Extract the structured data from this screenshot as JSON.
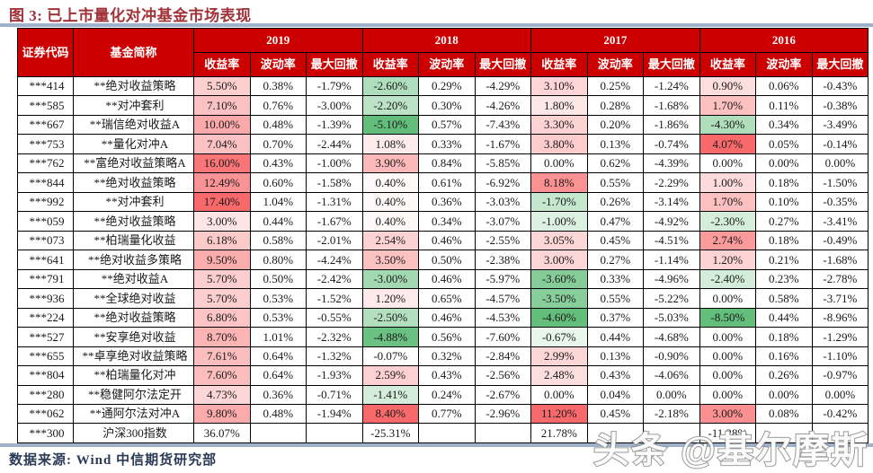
{
  "title": "图 3: 已上市量化对冲基金市场表现",
  "source_note": "数据来源: Wind 中信期货研究部",
  "watermark": "头条 @基尔摩斯",
  "colors": {
    "header_bg": "#CC0000",
    "title_text": "#A03238",
    "divider": "#9FB2CC",
    "scale_positive_max": "#F8696B",
    "scale_negative_min": "#63BE7B",
    "cell_neutral": "#FFFFFF"
  },
  "table": {
    "code_header": "证券代码",
    "name_header": "基金简称",
    "years": [
      "2019",
      "2018",
      "2017",
      "2016"
    ],
    "metric_headers": [
      "收益率",
      "波动率",
      "最大回撤"
    ],
    "rows": [
      {
        "code": "***414",
        "name": "**绝对收益策略",
        "cells": [
          [
            "5.50%",
            "0.38%",
            "-1.79%"
          ],
          [
            "-2.60%",
            "0.29%",
            "-4.29%"
          ],
          [
            "3.10%",
            "0.25%",
            "-1.24%"
          ],
          [
            "0.90%",
            "0.06%",
            "-0.43%"
          ]
        ]
      },
      {
        "code": "***585",
        "name": "**对冲套利",
        "cells": [
          [
            "7.10%",
            "0.76%",
            "-3.00%"
          ],
          [
            "-2.20%",
            "0.30%",
            "-4.26%"
          ],
          [
            "1.80%",
            "0.28%",
            "-1.68%"
          ],
          [
            "1.70%",
            "0.11%",
            "-0.38%"
          ]
        ]
      },
      {
        "code": "***667",
        "name": "**瑞信绝对收益A",
        "cells": [
          [
            "10.00%",
            "0.48%",
            "-1.39%"
          ],
          [
            "-5.10%",
            "0.57%",
            "-7.43%"
          ],
          [
            "3.30%",
            "0.20%",
            "-1.86%"
          ],
          [
            "-4.30%",
            "0.34%",
            "-3.49%"
          ]
        ]
      },
      {
        "code": "***753",
        "name": "**量化对冲A",
        "cells": [
          [
            "7.04%",
            "0.70%",
            "-2.44%"
          ],
          [
            "1.08%",
            "0.33%",
            "-1.67%"
          ],
          [
            "3.80%",
            "0.13%",
            "-0.74%"
          ],
          [
            "4.07%",
            "0.05%",
            "-0.14%"
          ]
        ]
      },
      {
        "code": "***762",
        "name": "**富绝对收益策略A",
        "cells": [
          [
            "16.00%",
            "0.43%",
            "-1.00%"
          ],
          [
            "3.90%",
            "0.84%",
            "-5.85%"
          ],
          [
            "0.00%",
            "0.62%",
            "-4.39%"
          ],
          [
            "0.00%",
            "0.00%",
            "0.00%"
          ]
        ]
      },
      {
        "code": "***844",
        "name": "**绝对收益策略",
        "cells": [
          [
            "12.49%",
            "0.60%",
            "-1.58%"
          ],
          [
            "0.40%",
            "0.61%",
            "-6.92%"
          ],
          [
            "8.18%",
            "0.55%",
            "-2.29%"
          ],
          [
            "1.00%",
            "0.18%",
            "-1.50%"
          ]
        ]
      },
      {
        "code": "***992",
        "name": "**对冲套利",
        "cells": [
          [
            "17.40%",
            "1.04%",
            "-1.31%"
          ],
          [
            "0.40%",
            "0.36%",
            "-3.03%"
          ],
          [
            "-1.70%",
            "0.26%",
            "-3.14%"
          ],
          [
            "1.70%",
            "0.10%",
            "-0.35%"
          ]
        ]
      },
      {
        "code": "***059",
        "name": "**绝对收益策略",
        "cells": [
          [
            "3.00%",
            "0.44%",
            "-1.67%"
          ],
          [
            "0.40%",
            "0.34%",
            "-3.07%"
          ],
          [
            "-1.00%",
            "0.47%",
            "-4.92%"
          ],
          [
            "-2.30%",
            "0.27%",
            "-3.41%"
          ]
        ]
      },
      {
        "code": "***073",
        "name": "**柏瑞量化收益",
        "cells": [
          [
            "6.18%",
            "0.58%",
            "-2.01%"
          ],
          [
            "2.54%",
            "0.46%",
            "-2.55%"
          ],
          [
            "3.05%",
            "0.45%",
            "-4.51%"
          ],
          [
            "2.74%",
            "0.18%",
            "-0.49%"
          ]
        ]
      },
      {
        "code": "***641",
        "name": "**绝对收益多策略",
        "cells": [
          [
            "9.50%",
            "0.80%",
            "-4.24%"
          ],
          [
            "3.50%",
            "0.50%",
            "-2.38%"
          ],
          [
            "3.00%",
            "0.27%",
            "-1.14%"
          ],
          [
            "1.20%",
            "0.21%",
            "-1.68%"
          ]
        ]
      },
      {
        "code": "***791",
        "name": "**绝对收益A",
        "cells": [
          [
            "5.70%",
            "0.50%",
            "-2.42%"
          ],
          [
            "-3.00%",
            "0.46%",
            "-5.97%"
          ],
          [
            "-3.60%",
            "0.33%",
            "-4.96%"
          ],
          [
            "-2.40%",
            "0.23%",
            "-2.78%"
          ]
        ]
      },
      {
        "code": "***936",
        "name": "**全球绝对收益",
        "cells": [
          [
            "5.70%",
            "0.53%",
            "-1.52%"
          ],
          [
            "1.20%",
            "0.65%",
            "-4.57%"
          ],
          [
            "-3.50%",
            "0.55%",
            "-5.22%"
          ],
          [
            "0.00%",
            "0.58%",
            "-3.71%"
          ]
        ]
      },
      {
        "code": "***224",
        "name": "**绝对收益策略",
        "cells": [
          [
            "6.80%",
            "0.53%",
            "-0.55%"
          ],
          [
            "-2.50%",
            "0.46%",
            "-4.53%"
          ],
          [
            "-4.60%",
            "0.37%",
            "-5.03%"
          ],
          [
            "-8.50%",
            "0.44%",
            "-8.96%"
          ]
        ]
      },
      {
        "code": "***527",
        "name": "**安享绝对收益",
        "cells": [
          [
            "8.70%",
            "1.01%",
            "-2.32%"
          ],
          [
            "-4.88%",
            "0.56%",
            "-7.60%"
          ],
          [
            "-0.67%",
            "0.44%",
            "-4.68%"
          ],
          [
            "0.00%",
            "0.18%",
            "-1.29%"
          ]
        ]
      },
      {
        "code": "***655",
        "name": "**卓享绝对收益策略",
        "cells": [
          [
            "7.61%",
            "0.64%",
            "-1.32%"
          ],
          [
            "-0.07%",
            "0.32%",
            "-2.84%"
          ],
          [
            "2.99%",
            "0.13%",
            "-0.90%"
          ],
          [
            "0.00%",
            "0.16%",
            "-1.10%"
          ]
        ]
      },
      {
        "code": "***804",
        "name": "**柏瑞量化对冲",
        "cells": [
          [
            "7.60%",
            "0.64%",
            "-1.93%"
          ],
          [
            "2.59%",
            "0.43%",
            "-2.56%"
          ],
          [
            "2.48%",
            "0.43%",
            "-4.06%"
          ],
          [
            "0.00%",
            "0.26%",
            "-0.97%"
          ]
        ]
      },
      {
        "code": "***280",
        "name": "**稳健阿尔法定开",
        "cells": [
          [
            "4.73%",
            "0.36%",
            "-0.71%"
          ],
          [
            "-1.41%",
            "0.24%",
            "-2.67%"
          ],
          [
            "0.00%",
            "0.04%",
            "0.00%"
          ],
          [
            "0.00%",
            "0.00%",
            "0.00%"
          ]
        ]
      },
      {
        "code": "***062",
        "name": "**通阿尔法对冲A",
        "cells": [
          [
            "9.80%",
            "0.48%",
            "-1.94%"
          ],
          [
            "8.40%",
            "0.77%",
            "-2.96%"
          ],
          [
            "11.20%",
            "0.45%",
            "-2.18%"
          ],
          [
            "3.00%",
            "0.08%",
            "-0.42%"
          ]
        ]
      },
      {
        "code": "***300",
        "name": "沪深300指数",
        "is_index": true,
        "cells": [
          [
            "36.07%",
            "",
            ""
          ],
          [
            "-25.31%",
            "",
            ""
          ],
          [
            "21.78%",
            "",
            ""
          ],
          [
            "-11.28%",
            "",
            ""
          ]
        ]
      }
    ]
  }
}
